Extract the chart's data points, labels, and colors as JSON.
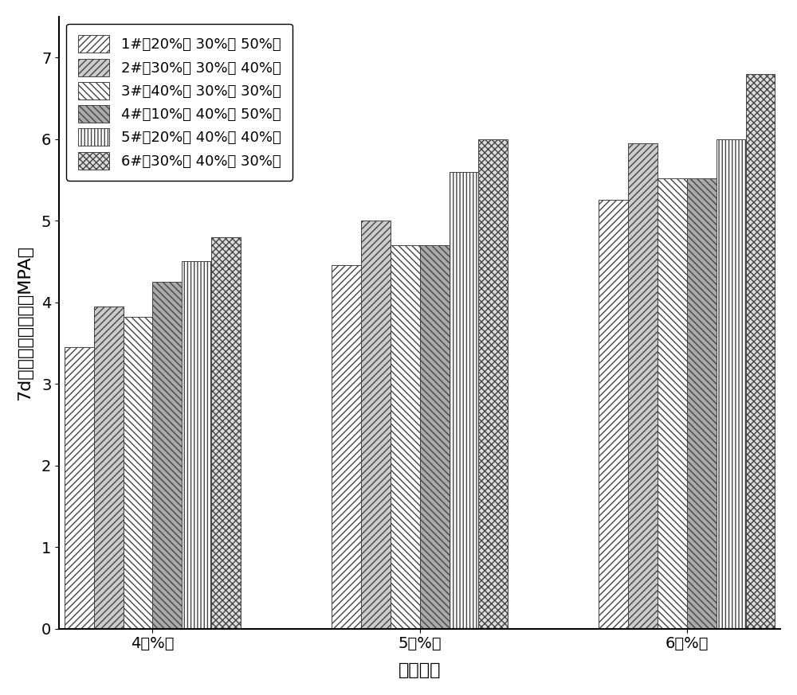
{
  "categories": [
    "4（%）",
    "5（%）",
    "6（%）"
  ],
  "series": [
    {
      "label": "1#（20%、 30%、 50%）",
      "values": [
        3.45,
        4.45,
        5.25
      ],
      "hatch": "////",
      "facecolor": "white",
      "edgecolor": "#444444"
    },
    {
      "label": "2#（30%、 30%、 40%）",
      "values": [
        3.95,
        5.0,
        5.95
      ],
      "hatch": "////",
      "facecolor": "#cccccc",
      "edgecolor": "#444444"
    },
    {
      "label": "3#（40%、 30%、 30%）",
      "values": [
        3.82,
        4.7,
        5.52
      ],
      "hatch": "\\\\\\\\",
      "facecolor": "white",
      "edgecolor": "#444444"
    },
    {
      "label": "4#（10%、 40%、 50%）",
      "values": [
        4.25,
        4.7,
        5.52
      ],
      "hatch": "\\\\\\\\",
      "facecolor": "#aaaaaa",
      "edgecolor": "#444444"
    },
    {
      "label": "5#（20%、 40%、 40%）",
      "values": [
        4.5,
        5.6,
        6.0
      ],
      "hatch": "||||",
      "facecolor": "white",
      "edgecolor": "#444444"
    },
    {
      "label": "6#（30%、 40%、 30%）",
      "values": [
        4.8,
        6.0,
        6.8
      ],
      "hatch": "xxxx",
      "facecolor": "#dddddd",
      "edgecolor": "#444444"
    }
  ],
  "xlabel": "水泥掺量",
  "ylabel": "7d无侧限抗压强度（MPA）",
  "ylim": [
    0,
    7.5
  ],
  "yticks": [
    0,
    1,
    2,
    3,
    4,
    5,
    6,
    7
  ],
  "bar_width": 0.11,
  "background_color": "#ffffff",
  "legend_fontsize": 13,
  "axis_fontsize": 16,
  "tick_fontsize": 14
}
